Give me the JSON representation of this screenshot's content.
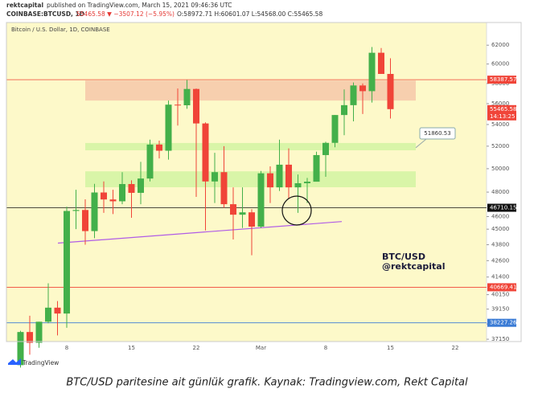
{
  "header": {
    "author": "rektcapital",
    "published": "published on TradingView.com, March 15, 2021 09:46:36 UTC",
    "symbol": "COINBASE:BTCUSD, 1D",
    "quote": "55465.58 ▼ −3507.12 (−5.95%)",
    "ohlc": "O:58972.71 H:60601.07 L:54568.00 C:55465.58"
  },
  "chart_data": {
    "type": "candlestick",
    "title": "Bitcoin / U.S. Dollar, 1D, COINBASE",
    "categories": [
      null,
      null,
      null,
      null,
      null,
      "8",
      null,
      null,
      null,
      null,
      null,
      null,
      "15",
      null,
      null,
      null,
      null,
      null,
      null,
      "22",
      null,
      null,
      null,
      null,
      null,
      null,
      "Mar",
      null,
      null,
      null,
      null,
      null,
      null,
      "8",
      null,
      null,
      null,
      null,
      null,
      null,
      "15",
      null,
      null,
      null,
      null,
      null,
      null,
      "22",
      null,
      null
    ],
    "open": [
      35510,
      37620,
      36920,
      38300,
      39250,
      38850,
      46450,
      46530,
      44850,
      47970,
      47390,
      47240,
      48680,
      47940,
      49150,
      52150,
      51590,
      55900,
      55840,
      57450,
      54100,
      48900,
      49700,
      47000,
      46150,
      46340,
      45200,
      49600,
      48400,
      50350,
      48400,
      48750,
      48880,
      51200,
      52300,
      54900,
      55850,
      57800,
      57230,
      61190,
      58972.71,
      null,
      null,
      null,
      null,
      null,
      null,
      null,
      null,
      null
    ],
    "high": [
      37700,
      38700,
      38300,
      40950,
      39700,
      46800,
      48200,
      47400,
      48700,
      48900,
      48200,
      49700,
      49000,
      50600,
      52600,
      52500,
      56300,
      57500,
      58350,
      57500,
      54200,
      51400,
      52000,
      48400,
      48400,
      46600,
      49800,
      50200,
      52600,
      51800,
      49500,
      49200,
      51500,
      52400,
      54900,
      57400,
      58100,
      58000,
      61800,
      61700,
      60601.07,
      null,
      null,
      null,
      null,
      null,
      null,
      null,
      null,
      null
    ],
    "low": [
      35360,
      36160,
      36600,
      38200,
      37400,
      37900,
      45000,
      43800,
      44300,
      46300,
      46200,
      47000,
      45900,
      47000,
      48900,
      50900,
      50800,
      53900,
      55500,
      47600,
      44900,
      47100,
      46700,
      44200,
      45100,
      43000,
      45100,
      47100,
      48100,
      47500,
      46300,
      47100,
      48900,
      49300,
      51900,
      53000,
      54300,
      55000,
      56100,
      59000,
      54568,
      null,
      null,
      null,
      null,
      null,
      null,
      null,
      null,
      null
    ],
    "close": [
      37620,
      36920,
      38300,
      39250,
      38850,
      46450,
      46530,
      44850,
      47970,
      47390,
      47240,
      48680,
      47940,
      49150,
      52150,
      51590,
      55900,
      55840,
      57450,
      54100,
      48900,
      49700,
      47000,
      46150,
      46340,
      45200,
      49600,
      48400,
      50350,
      48400,
      48750,
      48880,
      51200,
      52300,
      54900,
      55850,
      57800,
      57230,
      61190,
      58972.71,
      55465.58,
      null,
      null,
      null,
      null,
      null,
      null,
      null,
      null,
      null
    ],
    "up_color": "#43b04a",
    "down_color": "#f04438",
    "background": "#fdf9c9",
    "log_scale": true,
    "ylim": [
      37000,
      64500
    ],
    "yticks": [
      62000,
      60000,
      58000,
      56000,
      54000,
      52000,
      50000,
      48000,
      46000,
      45000,
      43800,
      42600,
      41400,
      40150,
      39150,
      38150,
      37150
    ],
    "countdown": "14:13:25",
    "levels": [
      {
        "value": 58387.57,
        "color": "#f04438"
      },
      {
        "value": 46710.15,
        "color": "#111111"
      },
      {
        "value": 40669.41,
        "color": "#f04438"
      },
      {
        "value": 38227.26,
        "color": "#3a7bd5"
      }
    ],
    "zones": [
      {
        "from": 56300,
        "to": 58300,
        "color": "#f7cfae"
      },
      {
        "from": 51630,
        "to": 52290,
        "color": "#d9f5a8"
      },
      {
        "from": 48410,
        "to": 49770,
        "color": "#d9f5a8"
      }
    ],
    "callout": {
      "value": 51860.53
    },
    "trendline": {
      "values": [
        43920,
        45600
      ],
      "color": "#b05ce6"
    },
    "watermark": [
      "BTC/USD",
      "@rektcapital"
    ]
  },
  "footer": {
    "logo": "TradingView",
    "caption": "BTC/USD paritesine ait günlük grafik. Kaynak: Tradingview.com, Rekt Capital"
  }
}
